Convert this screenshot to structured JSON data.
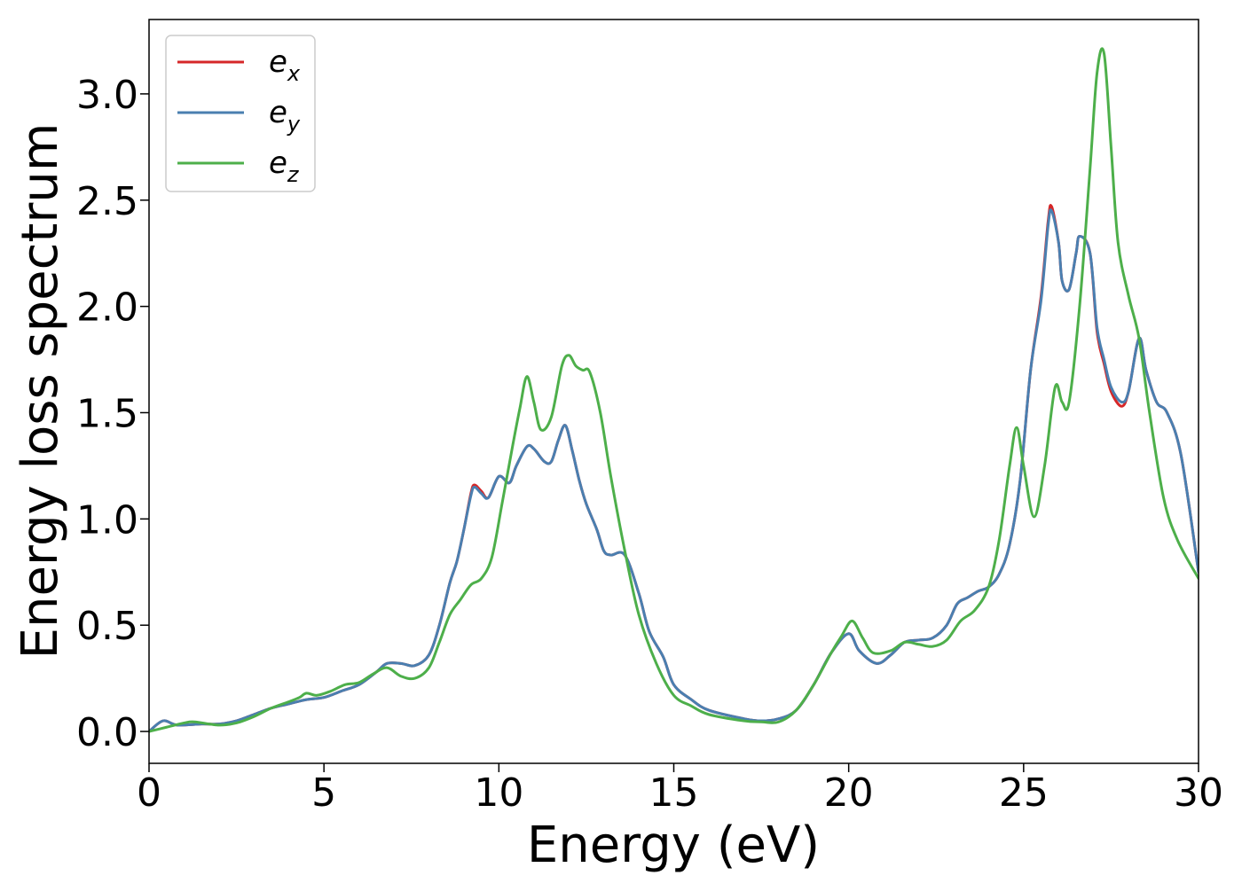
{
  "chart_data": {
    "type": "line",
    "xlabel": "Energy (eV)",
    "ylabel": "Energy loss spectrum",
    "xlim": [
      0,
      30
    ],
    "ylim": [
      -0.15,
      3.35
    ],
    "xticks": [
      0,
      5,
      10,
      15,
      20,
      25,
      30
    ],
    "xtick_labels": [
      "0",
      "5",
      "10",
      "15",
      "20",
      "25",
      "30"
    ],
    "yticks": [
      0.0,
      0.5,
      1.0,
      1.5,
      2.0,
      2.5,
      3.0
    ],
    "ytick_labels": [
      "0.0",
      "0.5",
      "1.0",
      "1.5",
      "2.0",
      "2.5",
      "3.0"
    ],
    "grid": false,
    "legend_position": "top-left",
    "series": [
      {
        "name": "e_x",
        "legend_main": "e",
        "legend_sub": "x",
        "color": "#d62728",
        "x": [
          0,
          0.4,
          0.8,
          1.5,
          2,
          2.5,
          3,
          3.5,
          4,
          4.5,
          5,
          5.5,
          6,
          6.5,
          6.8,
          7.2,
          7.6,
          8,
          8.3,
          8.6,
          8.8,
          9.0,
          9.2,
          9.3,
          9.5,
          9.7,
          10.0,
          10.3,
          10.5,
          10.8,
          11.0,
          11.3,
          11.5,
          11.7,
          11.9,
          12.1,
          12.3,
          12.5,
          12.8,
          13.0,
          13.2,
          13.6,
          14,
          14.3,
          14.7,
          15,
          15.5,
          16,
          17,
          17.5,
          18,
          18.5,
          19,
          19.5,
          20.0,
          20.3,
          20.8,
          21.2,
          21.6,
          22,
          22.4,
          22.8,
          23.1,
          23.4,
          23.7,
          24,
          24.3,
          24.6,
          24.9,
          25.2,
          25.5,
          25.7,
          25.8,
          26.0,
          26.1,
          26.3,
          26.5,
          26.6,
          26.9,
          27.1,
          27.3,
          27.5,
          27.8,
          28.0,
          28.3,
          28.5,
          28.8,
          29.1,
          29.5,
          30.0
        ],
        "values": [
          0.0,
          0.05,
          0.03,
          0.035,
          0.035,
          0.05,
          0.08,
          0.11,
          0.13,
          0.15,
          0.16,
          0.19,
          0.22,
          0.28,
          0.32,
          0.32,
          0.31,
          0.36,
          0.5,
          0.7,
          0.8,
          0.95,
          1.12,
          1.16,
          1.13,
          1.1,
          1.2,
          1.17,
          1.25,
          1.34,
          1.33,
          1.27,
          1.27,
          1.37,
          1.44,
          1.32,
          1.18,
          1.07,
          0.95,
          0.85,
          0.83,
          0.83,
          0.65,
          0.47,
          0.35,
          0.22,
          0.15,
          0.1,
          0.06,
          0.05,
          0.06,
          0.1,
          0.22,
          0.37,
          0.46,
          0.38,
          0.32,
          0.36,
          0.42,
          0.43,
          0.44,
          0.5,
          0.6,
          0.63,
          0.66,
          0.68,
          0.74,
          0.88,
          1.18,
          1.7,
          2.05,
          2.4,
          2.47,
          2.3,
          2.12,
          2.08,
          2.25,
          2.33,
          2.25,
          1.88,
          1.73,
          1.6,
          1.53,
          1.6,
          1.85,
          1.7,
          1.55,
          1.5,
          1.3,
          0.75
        ]
      },
      {
        "name": "e_y",
        "legend_main": "e",
        "legend_sub": "y",
        "color": "#4a7fb0",
        "x": [
          0,
          0.4,
          0.8,
          1.5,
          2,
          2.5,
          3,
          3.5,
          4,
          4.5,
          5,
          5.5,
          6,
          6.5,
          6.8,
          7.2,
          7.6,
          8,
          8.3,
          8.6,
          8.8,
          9.0,
          9.2,
          9.3,
          9.5,
          9.7,
          10.0,
          10.3,
          10.5,
          10.8,
          11.0,
          11.3,
          11.5,
          11.7,
          11.9,
          12.1,
          12.3,
          12.5,
          12.8,
          13.0,
          13.2,
          13.6,
          14,
          14.3,
          14.7,
          15,
          15.5,
          16,
          17,
          17.5,
          18,
          18.5,
          19,
          19.5,
          20.0,
          20.3,
          20.8,
          21.2,
          21.6,
          22,
          22.4,
          22.8,
          23.1,
          23.4,
          23.7,
          24,
          24.3,
          24.6,
          24.9,
          25.2,
          25.5,
          25.7,
          25.8,
          26.0,
          26.1,
          26.3,
          26.5,
          26.6,
          26.9,
          27.1,
          27.3,
          27.5,
          27.8,
          28.0,
          28.3,
          28.5,
          28.8,
          29.1,
          29.5,
          30.0
        ],
        "values": [
          0.0,
          0.05,
          0.03,
          0.035,
          0.035,
          0.05,
          0.08,
          0.11,
          0.13,
          0.15,
          0.16,
          0.19,
          0.22,
          0.28,
          0.32,
          0.32,
          0.31,
          0.36,
          0.5,
          0.7,
          0.8,
          0.95,
          1.11,
          1.15,
          1.12,
          1.1,
          1.2,
          1.17,
          1.25,
          1.34,
          1.33,
          1.27,
          1.27,
          1.37,
          1.44,
          1.32,
          1.18,
          1.07,
          0.95,
          0.85,
          0.83,
          0.83,
          0.65,
          0.47,
          0.35,
          0.22,
          0.15,
          0.1,
          0.06,
          0.05,
          0.06,
          0.1,
          0.22,
          0.37,
          0.46,
          0.38,
          0.32,
          0.36,
          0.42,
          0.43,
          0.44,
          0.5,
          0.6,
          0.63,
          0.66,
          0.68,
          0.74,
          0.88,
          1.18,
          1.7,
          2.03,
          2.38,
          2.45,
          2.3,
          2.12,
          2.08,
          2.25,
          2.33,
          2.25,
          1.9,
          1.75,
          1.62,
          1.55,
          1.6,
          1.85,
          1.7,
          1.55,
          1.5,
          1.3,
          0.75
        ]
      },
      {
        "name": "e_z",
        "legend_main": "e",
        "legend_sub": "z",
        "color": "#4daf4a",
        "x": [
          0,
          0.5,
          1.0,
          1.3,
          2,
          2.5,
          3,
          3.5,
          4,
          4.3,
          4.5,
          4.8,
          5.2,
          5.6,
          6,
          6.4,
          6.8,
          7.2,
          7.6,
          8,
          8.3,
          8.6,
          8.9,
          9.2,
          9.5,
          9.8,
          10.1,
          10.4,
          10.6,
          10.8,
          11.0,
          11.2,
          11.5,
          11.8,
          12.0,
          12.2,
          12.4,
          12.6,
          12.9,
          13.2,
          13.6,
          14,
          14.5,
          15,
          15.5,
          16,
          17,
          17.5,
          18,
          18.5,
          19,
          19.5,
          19.8,
          20.1,
          20.4,
          20.7,
          21.2,
          21.6,
          22,
          22.4,
          22.8,
          23.2,
          23.6,
          24,
          24.3,
          24.6,
          24.8,
          25.0,
          25.3,
          25.6,
          25.9,
          26.1,
          26.3,
          26.6,
          26.9,
          27.1,
          27.3,
          27.5,
          27.7,
          28.0,
          28.3,
          28.6,
          29.0,
          29.4,
          30.0
        ],
        "values": [
          0.0,
          0.02,
          0.04,
          0.045,
          0.03,
          0.04,
          0.07,
          0.11,
          0.14,
          0.16,
          0.18,
          0.17,
          0.19,
          0.22,
          0.23,
          0.27,
          0.3,
          0.26,
          0.25,
          0.3,
          0.42,
          0.55,
          0.62,
          0.69,
          0.72,
          0.82,
          1.08,
          1.35,
          1.52,
          1.67,
          1.55,
          1.42,
          1.48,
          1.72,
          1.77,
          1.72,
          1.7,
          1.69,
          1.5,
          1.2,
          0.85,
          0.55,
          0.32,
          0.17,
          0.12,
          0.08,
          0.05,
          0.045,
          0.045,
          0.1,
          0.22,
          0.37,
          0.45,
          0.52,
          0.44,
          0.37,
          0.38,
          0.42,
          0.41,
          0.4,
          0.43,
          0.52,
          0.57,
          0.68,
          0.9,
          1.25,
          1.43,
          1.25,
          1.01,
          1.25,
          1.62,
          1.55,
          1.55,
          2.0,
          2.65,
          3.1,
          3.19,
          2.75,
          2.3,
          2.05,
          1.85,
          1.5,
          1.1,
          0.9,
          0.72
        ]
      }
    ]
  }
}
